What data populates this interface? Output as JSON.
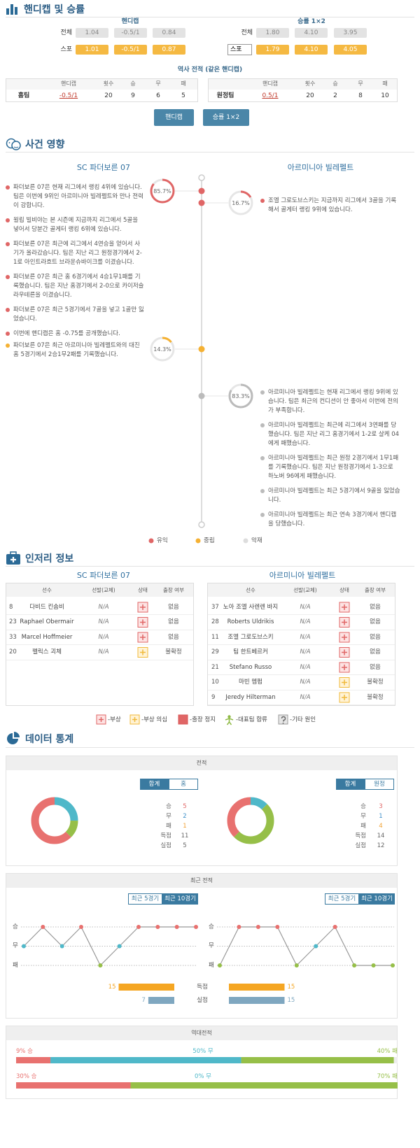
{
  "handicap_section": {
    "title": "핸디캡 및 승률",
    "handicap": {
      "title": "핸디캡",
      "rows": [
        {
          "label": "전체",
          "values": [
            "1.04",
            "-0.5/1",
            "0.84"
          ]
        },
        {
          "label": "스포",
          "values": [
            "1.01",
            "-0.5/1",
            "0.87"
          ]
        }
      ]
    },
    "odds": {
      "title": "승률 1×2",
      "rows": [
        {
          "label": "전체",
          "values": [
            "1.80",
            "4.10",
            "3.95"
          ]
        },
        {
          "label": "스포",
          "values": [
            "1.79",
            "4.10",
            "4.05"
          ]
        }
      ]
    },
    "history_title": "역사 전적 (같은 핸디캡)",
    "history_headers": [
      "핸디캡",
      "횟수",
      "승",
      "무",
      "패"
    ],
    "history": [
      {
        "team": "홈팀",
        "values": [
          "-0.5/1",
          20,
          9,
          6,
          5
        ]
      },
      {
        "team": "원정팀",
        "values": [
          "0.5/1",
          20,
          2,
          8,
          10
        ]
      }
    ],
    "buttons": [
      "핸디캡",
      "승률 1×2"
    ]
  },
  "events": {
    "title": "사건 영향",
    "home_team": "SC 파더보른 07",
    "away_team": "아르미니아 빌레펠트",
    "groups": [
      {
        "side": "home",
        "color": "#e06666",
        "percent": {
          "value": 85.7,
          "label": "85.7%"
        },
        "items": [
          "파더보른 07은 현재 리그에서 랭킹 4위에 있습니다. 팀은 이번에 9위인 아르미니아 빌레펠트와 만나 전력이 강합니다.",
          "윌립 빌비야는 본 시즌에 지금까지 리그에서 5골을 넣어서 당분간 골게터 랭킹 6위에 있습니다.",
          "파더보른 07은 최근에 리그에서 4연승을 얻어서 사기가 올라갔습니다. 팀은 지난 리그 원정경기에서 2-1로 아인트라흐트 브라운슈바이크를 이겼습니다.",
          "파더보른 07은 최근 홈 6경기에서 4승1무1패를 기록했습니다. 팀은 지난 홈경기에서 2-0으로 카이저슬라우테른을 이겼습니다.",
          "파더보른 07은 최근 5경기에서 7골을 넣고 1골만 잃었습니다.",
          "이번에 핸디캡은 홈 -0.75를 공개했습니다."
        ]
      },
      {
        "side": "away",
        "color": "#e06666",
        "percent": {
          "value": 16.7,
          "label": "16.7%"
        },
        "items": [
          "조엘 그로도브스키는 지금까지 리그에서 3골을 기록해서 골게터 랭킹 9위에 있습니다."
        ]
      },
      {
        "side": "home",
        "color": "#f5b133",
        "percent": {
          "value": 14.3,
          "label": "14.3%"
        },
        "items": [
          "파더보른 07은 최근 아르미니아 빌레펠트와의 대진 홈 5경기에서 2승1무2패를 기록했습니다."
        ]
      },
      {
        "side": "away",
        "color": "#bbbbbb",
        "percent": {
          "value": 83.3,
          "label": "83.3%"
        },
        "items": [
          "아르미니아 빌레펠트는 현재 리그에서 랭킹 9위에 있습니다. 팀은 최근의 컨디션이 안 좋아서 이번에 전의가 부족합니다.",
          "아르미니아 빌레펠트는 최근에 리그에서 3연패를 당했습니다. 팀은 지난 리그 홈경기에서 1-2로 샬케 04에게 패했습니다.",
          "아르미니아 빌레펠트는 최근 원정 2경기에서 1무1패를 기록했습니다. 팀은 지난 원정경기에서 1-3으로 하노버 96에게 패했습니다.",
          "아르미니아 빌레펠트는 최근 5경기에서 9골을 잃었습니다.",
          "아르미니아 빌레펠트는 최근 연속 3경기에서 핸디캡을 당했습니다."
        ]
      }
    ],
    "legend": [
      {
        "label": "유익",
        "color": "#e06666"
      },
      {
        "label": "중립",
        "color": "#f5b133"
      },
      {
        "label": "악재",
        "color": "#dddddd"
      }
    ]
  },
  "injuries": {
    "title": "인저리 정보",
    "headers": [
      "선수",
      "선발(교체)",
      "상태",
      "출장 여부"
    ],
    "teams": [
      {
        "name": "SC 파더보른 07",
        "players": [
          {
            "number": "8",
            "name": "다비드 킨솜비",
            "lineup": "N/A",
            "status": "injury",
            "availability": "없음"
          },
          {
            "number": "23",
            "name": "Raphael Obermair",
            "lineup": "N/A",
            "status": "injury",
            "availability": "없음"
          },
          {
            "number": "33",
            "name": "Marcel Hoffmeier",
            "lineup": "N/A",
            "status": "injury",
            "availability": "없음"
          },
          {
            "number": "20",
            "name": "펠릭스 괴체",
            "lineup": "N/A",
            "status": "doubtful",
            "availability": "불확정"
          }
        ]
      },
      {
        "name": "아르미니아 빌레펠트",
        "players": [
          {
            "number": "37",
            "name": "노아 조엘 사렌렌 바지",
            "lineup": "N/A",
            "status": "injury",
            "availability": "없음"
          },
          {
            "number": "28",
            "name": "Roberts Uldrikis",
            "lineup": "N/A",
            "status": "injury",
            "availability": "없음"
          },
          {
            "number": "11",
            "name": "조엘 그로도브스키",
            "lineup": "N/A",
            "status": "injury",
            "availability": "없음"
          },
          {
            "number": "29",
            "name": "팀 한트베르커",
            "lineup": "N/A",
            "status": "injury",
            "availability": "없음"
          },
          {
            "number": "21",
            "name": "Stefano Russo",
            "lineup": "N/A",
            "status": "injury",
            "availability": "없음"
          },
          {
            "number": "10",
            "name": "마빈 멤펌",
            "lineup": "N/A",
            "status": "doubtful",
            "availability": "불확정"
          },
          {
            "number": "9",
            "name": "Jeredy Hilterman",
            "lineup": "N/A",
            "status": "doubtful",
            "availability": "불확정"
          }
        ]
      }
    ],
    "legend": [
      {
        "type": "injury",
        "label": "-부상"
      },
      {
        "type": "doubtful",
        "label": "-부상 의심"
      },
      {
        "type": "suspended",
        "label": "-출장 정지"
      },
      {
        "type": "national",
        "label": "-대표팀 합류"
      },
      {
        "type": "other",
        "label": "-기타 원인"
      }
    ]
  },
  "stats": {
    "title": "데이터 통계",
    "record": {
      "title": "전적",
      "segment_colors": [
        "#e8716f",
        "#4fb8c9",
        "#96bf48"
      ],
      "teams": [
        {
          "tabs": [
            "합계",
            "홈"
          ],
          "active_tab": 0,
          "rows": [
            {
              "label": "승",
              "value": 5,
              "color": "#e06666"
            },
            {
              "label": "무",
              "value": 2,
              "color": "#3d8fc9"
            },
            {
              "label": "패",
              "value": 1,
              "color": "#f0a030"
            },
            {
              "label": "득점",
              "value": 11,
              "color": "#666666"
            },
            {
              "label": "실점",
              "value": 5,
              "color": "#666666"
            }
          ]
        },
        {
          "tabs": [
            "합계",
            "원정"
          ],
          "active_tab": 0,
          "rows": [
            {
              "label": "승",
              "value": 3,
              "color": "#e06666"
            },
            {
              "label": "무",
              "value": 1,
              "color": "#3d8fc9"
            },
            {
              "label": "패",
              "value": 4,
              "color": "#f0a030"
            },
            {
              "label": "득점",
              "value": 14,
              "color": "#666666"
            },
            {
              "label": "실점",
              "value": 12,
              "color": "#666666"
            }
          ]
        }
      ]
    },
    "recent": {
      "title": "최근 전적",
      "levels": [
        {
          "value": 2,
          "label": "승",
          "color": "#e8716f"
        },
        {
          "value": 1,
          "label": "무",
          "color": "#4fb8c9"
        },
        {
          "value": 0,
          "label": "패",
          "color": "#96bf48"
        }
      ],
      "scored_label": "득점",
      "conceded_label": "실점",
      "scored_color": "#f5a623",
      "conceded_color": "#7fa7c0",
      "teams": [
        {
          "tabs": [
            "최근 5경기",
            "최근 10경기"
          ],
          "active_tab": 1,
          "results": [
            1,
            2,
            1,
            2,
            0,
            1,
            2,
            2,
            2,
            2
          ],
          "scored": 15,
          "conceded": 7
        },
        {
          "tabs": [
            "최근 5경기",
            "최근 10경기"
          ],
          "active_tab": 1,
          "results": [
            0,
            2,
            2,
            2,
            0,
            1,
            2,
            0,
            0,
            0
          ],
          "scored": 15,
          "conceded": 15
        }
      ]
    },
    "h2h": {
      "title": "역대전적",
      "colors": [
        "#e8716f",
        "#4fb8c9",
        "#96bf48"
      ],
      "rows": [
        [
          {
            "value": 9,
            "label": "9% 승"
          },
          {
            "value": 50,
            "label": "50% 무"
          },
          {
            "value": 40,
            "label": "40% 패"
          }
        ],
        [
          {
            "value": 30,
            "label": "30% 승"
          },
          {
            "value": 0,
            "label": "0% 무"
          },
          {
            "value": 70,
            "label": "70% 패"
          }
        ]
      ]
    }
  }
}
